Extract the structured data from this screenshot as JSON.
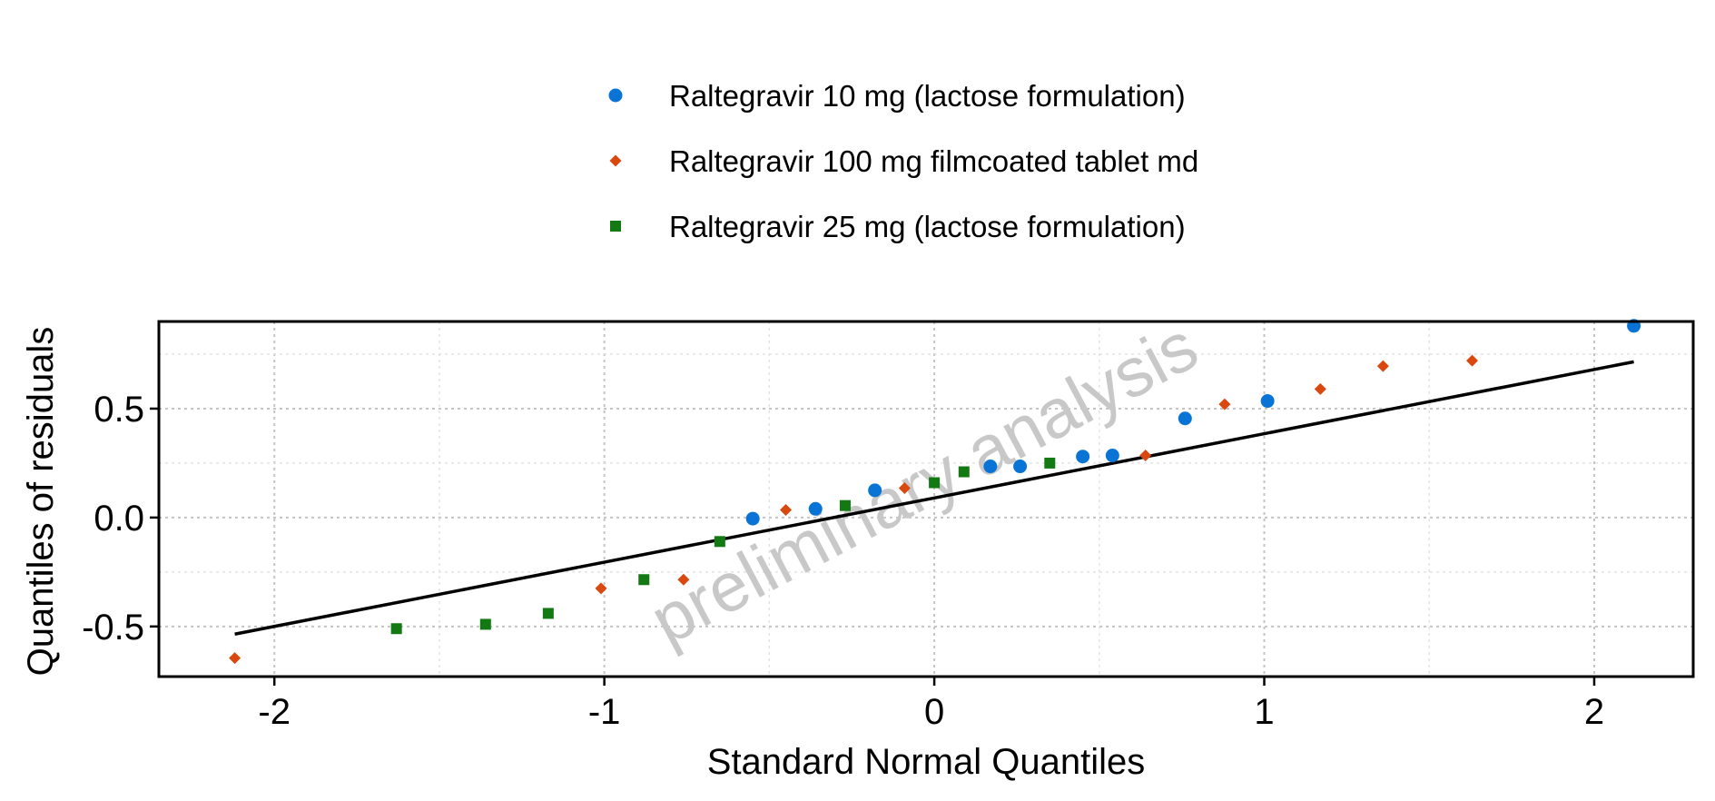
{
  "chart_data": {
    "type": "scatter",
    "xlabel": "Standard Normal Quantiles",
    "ylabel": "Quantiles of residuals",
    "watermark": "preliminary analysis",
    "xlim": [
      -2.35,
      2.3
    ],
    "ylim": [
      -0.73,
      0.9
    ],
    "x_ticks": [
      {
        "value": -2,
        "label": "-2"
      },
      {
        "value": -1,
        "label": "-1"
      },
      {
        "value": 0,
        "label": "0"
      },
      {
        "value": 1,
        "label": "1"
      },
      {
        "value": 2,
        "label": "2"
      }
    ],
    "y_ticks": [
      {
        "value": -0.5,
        "label": "-0.5"
      },
      {
        "value": 0.0,
        "label": "0.0"
      },
      {
        "value": 0.5,
        "label": "0.5"
      }
    ],
    "grid": true,
    "legend_position": "top",
    "reference_line": {
      "x": [
        -2.12,
        2.12
      ],
      "y": [
        -0.535,
        0.715
      ],
      "color": "#000000"
    },
    "series": [
      {
        "name": "Raltegravir 10 mg (lactose formulation)",
        "marker": "circle",
        "color": "#0a74d6",
        "x": [
          -0.55,
          -0.36,
          -0.18,
          0.17,
          0.26,
          0.45,
          0.54,
          0.76,
          1.01,
          2.12
        ],
        "y": [
          -0.005,
          0.04,
          0.125,
          0.235,
          0.235,
          0.28,
          0.285,
          0.455,
          0.535,
          0.88
        ]
      },
      {
        "name": "Raltegravir 100 mg filmcoated tablet md",
        "marker": "diamond",
        "color": "#d9480f",
        "x": [
          -2.12,
          -1.01,
          -0.76,
          -0.45,
          -0.09,
          0.64,
          0.88,
          1.17,
          1.36,
          1.63
        ],
        "y": [
          -0.645,
          -0.325,
          -0.285,
          0.035,
          0.135,
          0.285,
          0.52,
          0.59,
          0.695,
          0.72
        ]
      },
      {
        "name": "Raltegravir 25 mg (lactose formulation)",
        "marker": "square",
        "color": "#137a13",
        "x": [
          -1.63,
          -1.36,
          -1.17,
          -0.88,
          -0.65,
          -0.27,
          0.0,
          0.09,
          0.35
        ],
        "y": [
          -0.51,
          -0.49,
          -0.44,
          -0.285,
          -0.11,
          0.055,
          0.16,
          0.21,
          0.25
        ]
      }
    ]
  }
}
